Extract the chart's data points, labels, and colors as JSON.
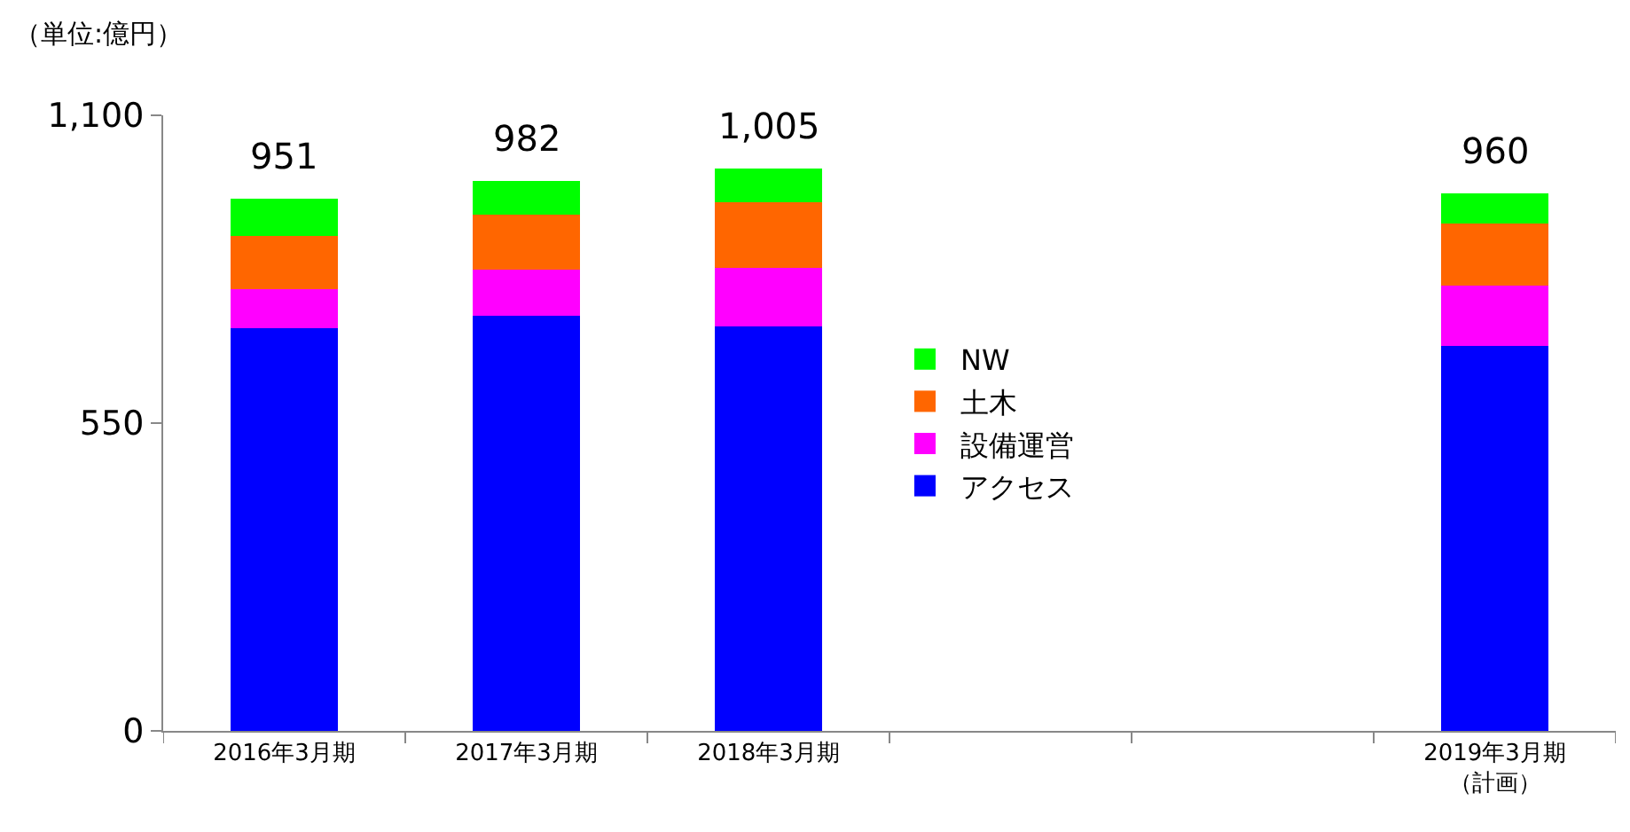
{
  "chart_data": {
    "type": "bar",
    "stacked": true,
    "ylabel": "（単位:億円）",
    "categories": [
      "2016年3月期",
      "2017年3月期",
      "2018年3月期",
      null,
      null,
      "2019年3月期（計画）"
    ],
    "series": [
      {
        "name": "アクセス",
        "color": "#0000ff",
        "values": [
          720,
          742,
          723,
          null,
          null,
          688
        ]
      },
      {
        "name": "設備運営",
        "color": "#ff00ff",
        "values": [
          69,
          82,
          104,
          null,
          null,
          108
        ]
      },
      {
        "name": "土木",
        "color": "#ff6600",
        "values": [
          95,
          98,
          118,
          null,
          null,
          111
        ]
      },
      {
        "name": "NW",
        "color": "#00ff00",
        "values": [
          67,
          60,
          60,
          null,
          null,
          53
        ]
      }
    ],
    "totals": [
      "951",
      "982",
      "1,005",
      null,
      null,
      "960"
    ],
    "ylim": [
      0,
      1100
    ],
    "yticks": [
      0,
      550,
      {
        "value": 1100,
        "label": "1,100"
      }
    ],
    "legend": "center"
  }
}
